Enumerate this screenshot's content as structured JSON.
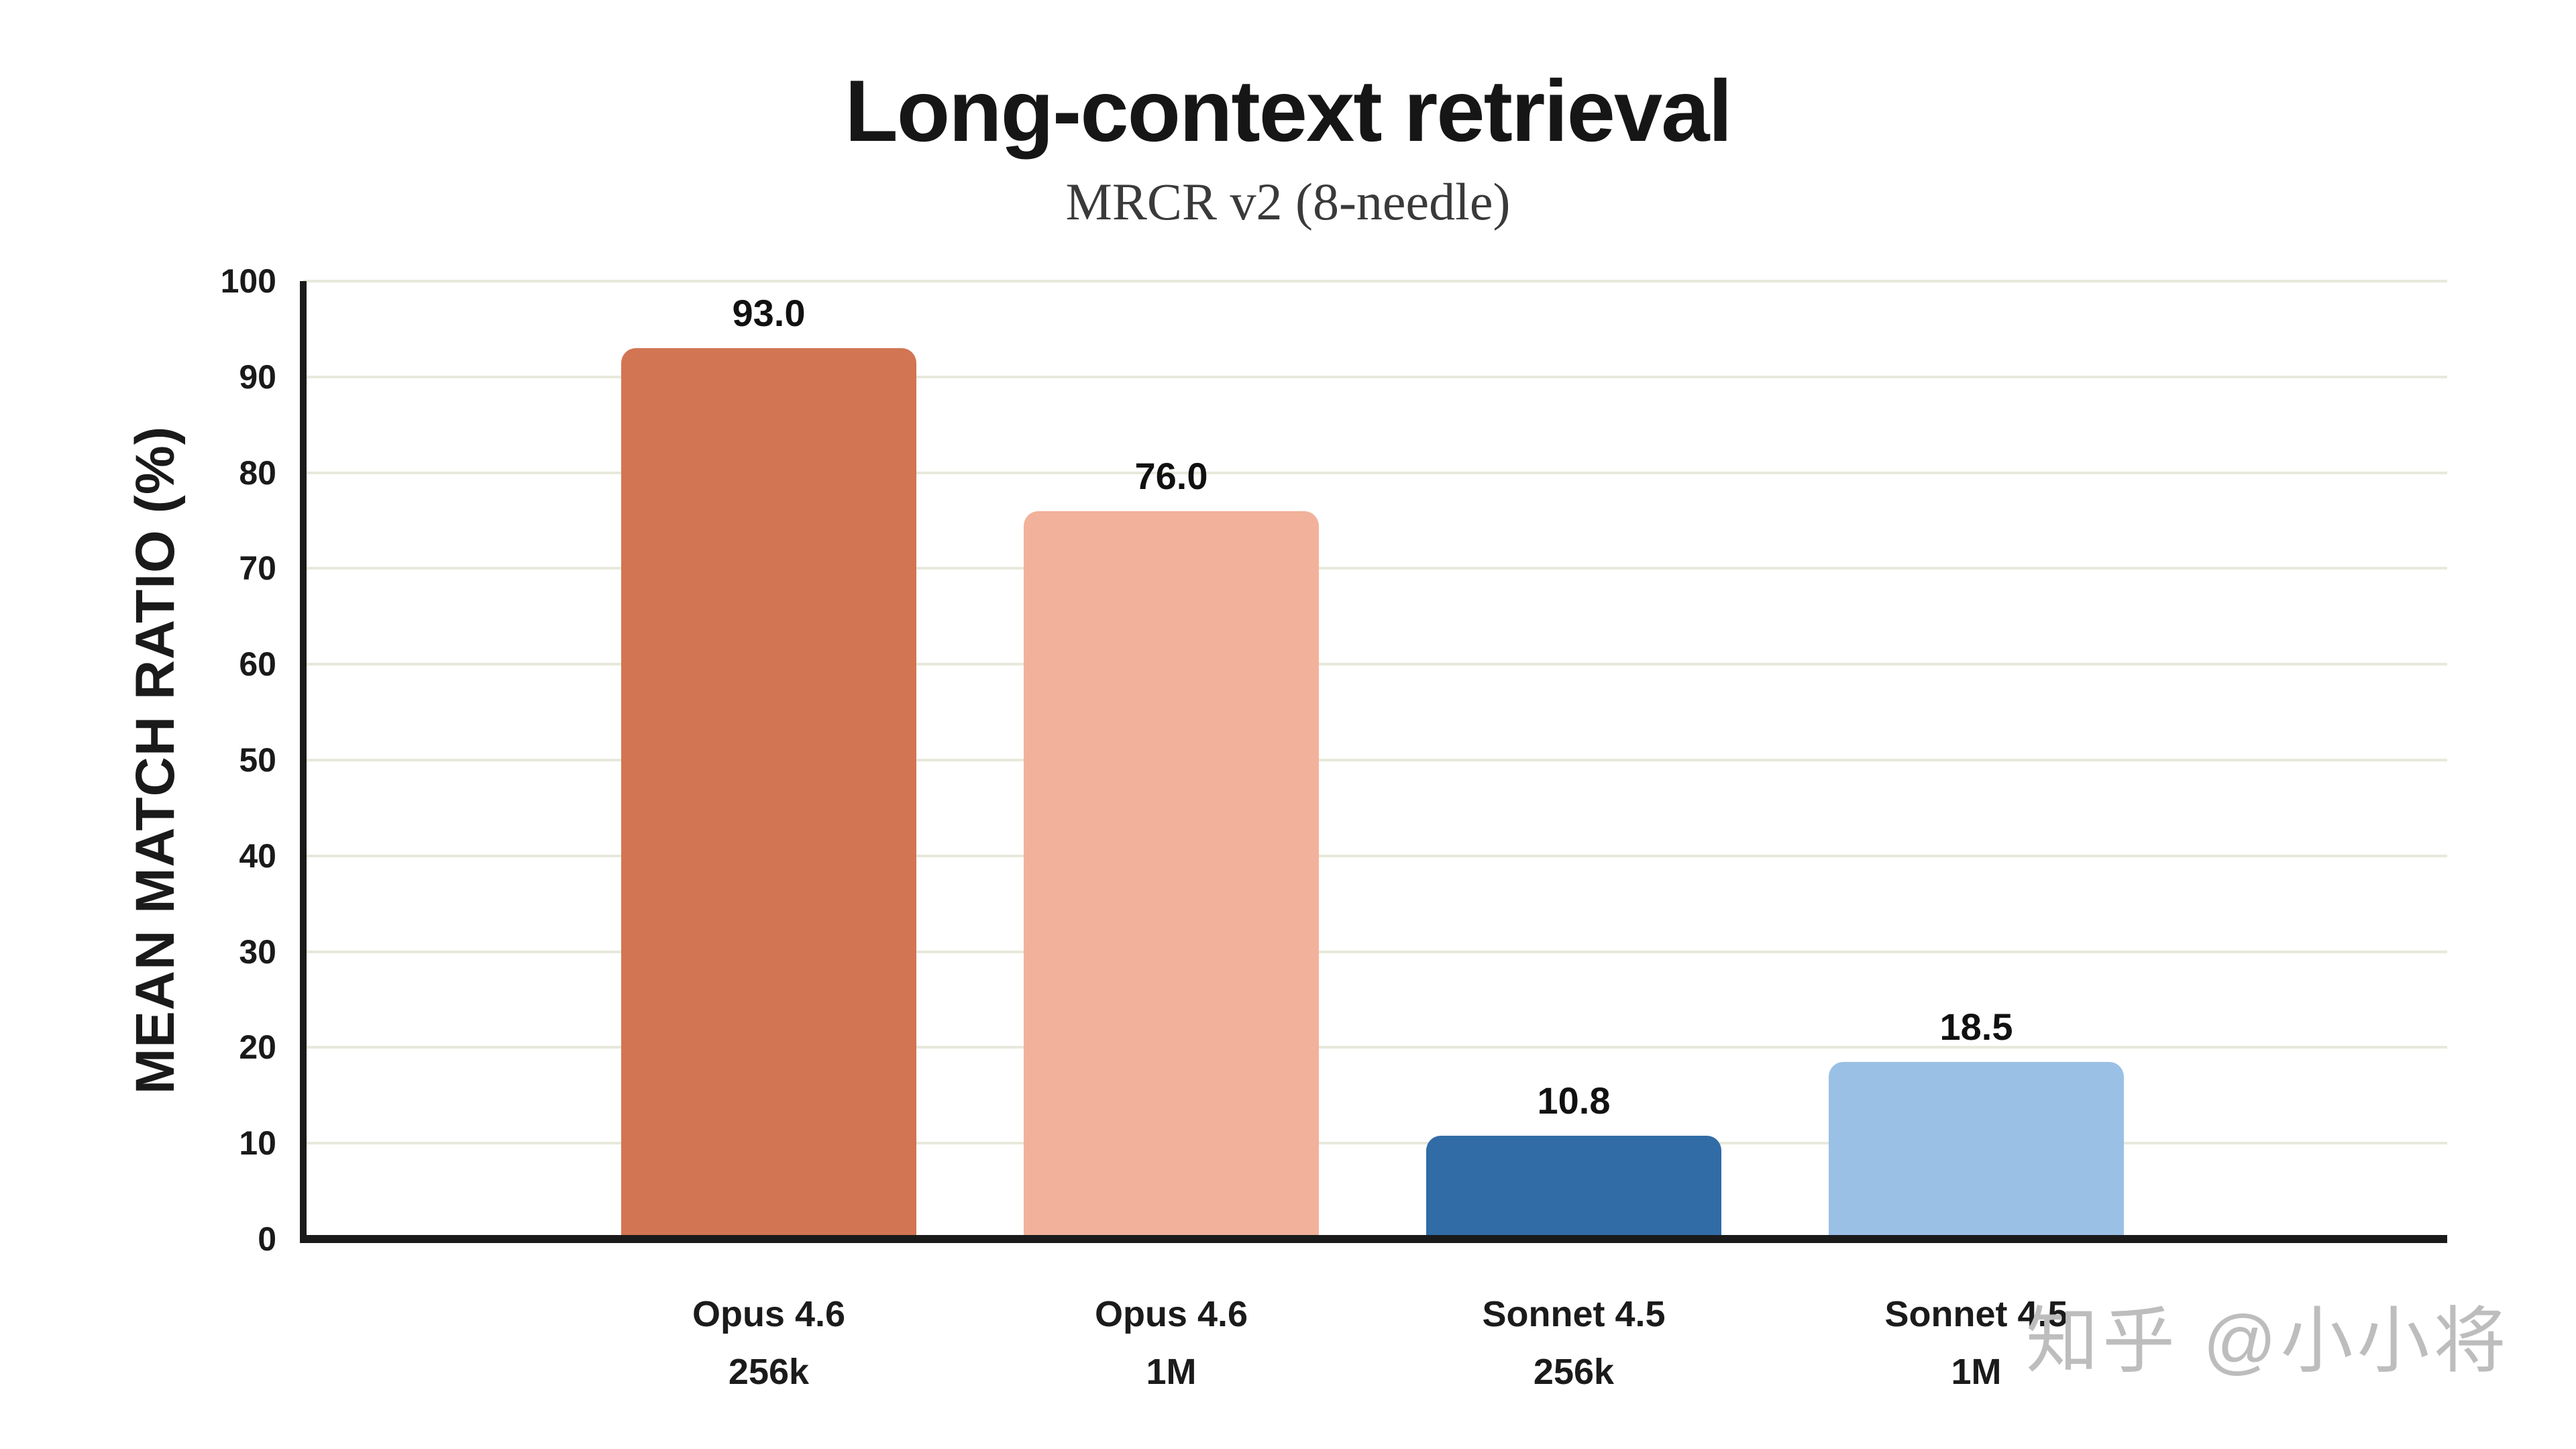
{
  "page": {
    "background": "#ffffff"
  },
  "header": {
    "title": "Long-context retrieval",
    "subtitle": "MRCR v2 (8-needle)"
  },
  "axes": {
    "y_label": "MEAN MATCH RATIO (%)",
    "y_min": 0,
    "y_max": 100,
    "y_tick_step": 10,
    "axis_color": "#1a1a1a",
    "grid_color": "#e8e8dc"
  },
  "bars": [
    {
      "label_line1": "Opus 4.6",
      "label_line2": "256k",
      "value": 93.0,
      "value_label": "93.0",
      "color": "#D27552"
    },
    {
      "label_line1": "Opus 4.6",
      "label_line2": "1M",
      "value": 76.0,
      "value_label": "76.0",
      "color": "#F2B19B"
    },
    {
      "label_line1": "Sonnet 4.5",
      "label_line2": "256k",
      "value": 10.8,
      "value_label": "10.8",
      "color": "#316CA6"
    },
    {
      "label_line1": "Sonnet 4.5",
      "label_line2": "1M",
      "value": 18.5,
      "value_label": "18.5",
      "color": "#9BC0E6"
    }
  ],
  "watermark": {
    "text": "知乎 @小小将",
    "color": "#bdbdbd"
  },
  "chart_data": {
    "type": "bar",
    "title": "Long-context retrieval",
    "subtitle": "MRCR v2 (8-needle)",
    "xlabel": "",
    "ylabel": "MEAN MATCH RATIO (%)",
    "ylim": [
      0,
      100
    ],
    "yticks": [
      0,
      10,
      20,
      30,
      40,
      50,
      60,
      70,
      80,
      90,
      100
    ],
    "grid": "horizontal",
    "legend": "none",
    "categories": [
      "Opus 4.6 256k",
      "Opus 4.6 1M",
      "Sonnet 4.5 256k",
      "Sonnet 4.5 1M"
    ],
    "values": [
      93.0,
      76.0,
      10.8,
      18.5
    ],
    "value_labels": [
      "93.0",
      "76.0",
      "10.8",
      "18.5"
    ],
    "bar_colors": [
      "#D27552",
      "#F2B19B",
      "#316CA6",
      "#9BC0E6"
    ],
    "watermark": "知乎 @小小将"
  }
}
